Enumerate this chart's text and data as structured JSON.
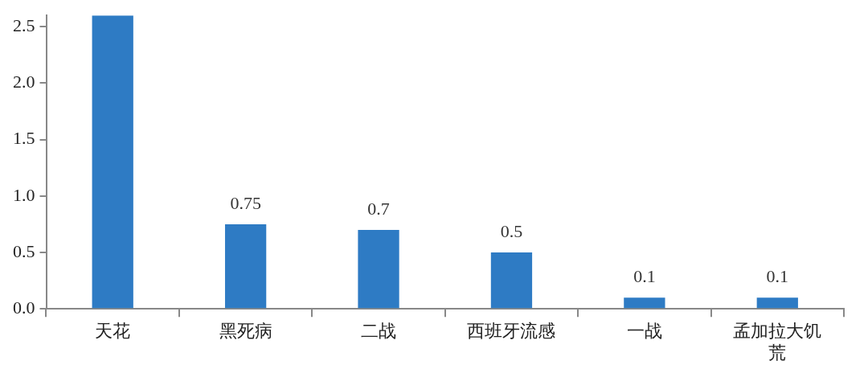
{
  "chart_data": {
    "type": "bar",
    "categories": [
      "天花",
      "黑死病",
      "二战",
      "西班牙流感",
      "一战",
      "孟加拉大饥荒"
    ],
    "values": [
      2.6,
      0.75,
      0.7,
      0.5,
      0.1,
      0.1
    ],
    "value_labels": [
      null,
      "0.75",
      "0.7",
      "0.5",
      "0.1",
      "0.1"
    ],
    "color": "#2e7bc4",
    "ylim": [
      0,
      2.6
    ],
    "yticks": [
      {
        "value": 0,
        "label": "0.0"
      },
      0.5,
      {
        "value": 1,
        "label": "1.0"
      },
      1.5,
      {
        "value": 2,
        "label": "2.0"
      },
      2.5
    ],
    "grid": false,
    "legend": false
  }
}
